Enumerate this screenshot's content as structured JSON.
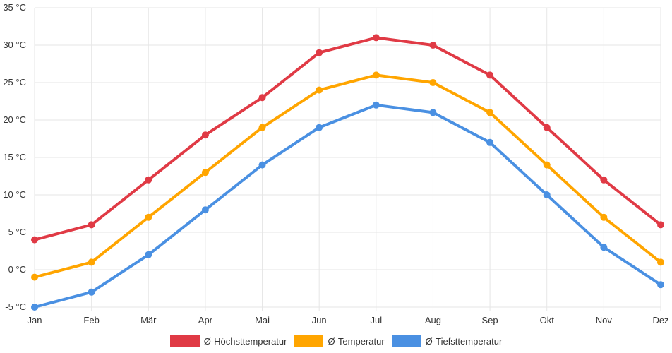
{
  "chart_data": {
    "type": "line",
    "categories": [
      "Jan",
      "Feb",
      "Mär",
      "Apr",
      "Mai",
      "Jun",
      "Jul",
      "Aug",
      "Sep",
      "Okt",
      "Nov",
      "Dez"
    ],
    "y_ticks": [
      "35 °C",
      "30 °C",
      "25 °C",
      "20 °C",
      "15 °C",
      "10 °C",
      "5 °C",
      "0 °C",
      "-5 °C"
    ],
    "ylim": [
      -5,
      35
    ],
    "grid": true,
    "legend_position": "bottom",
    "series": [
      {
        "name": "Ø-Höchsttemperatur",
        "color": "#e03a45",
        "values": [
          4,
          6,
          12,
          18,
          23,
          29,
          31,
          30,
          26,
          19,
          12,
          6
        ]
      },
      {
        "name": "Ø-Temperatur",
        "color": "#ffa500",
        "values": [
          -1,
          1,
          7,
          13,
          19,
          24,
          26,
          25,
          21,
          14,
          7,
          1
        ]
      },
      {
        "name": "Ø-Tiefsttemperatur",
        "color": "#4a90e2",
        "values": [
          -5,
          -3,
          2,
          8,
          14,
          19,
          22,
          21,
          17,
          10,
          3,
          -2
        ]
      }
    ]
  }
}
